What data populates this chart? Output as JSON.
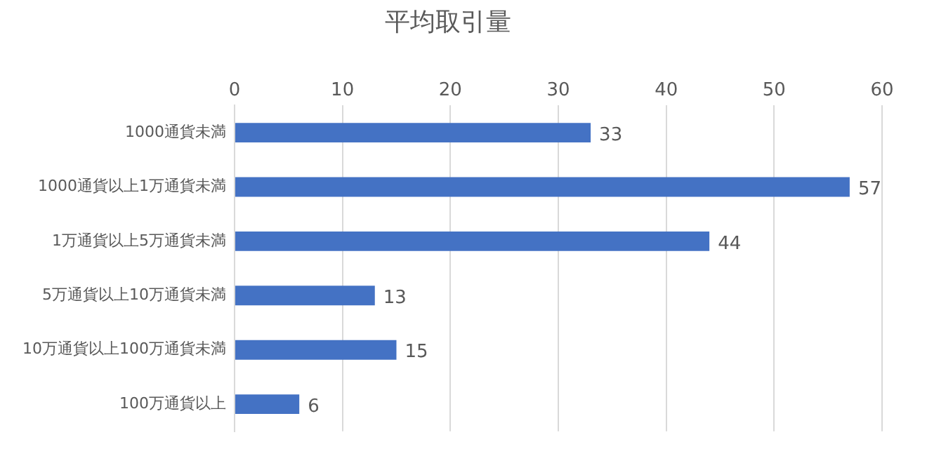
{
  "chart_data": {
    "type": "bar",
    "orientation": "horizontal",
    "title": "平均取引量",
    "categories": [
      "1000通貨未満",
      "1000通貨以上1万通貨未満",
      "1万通貨以上5万通貨未満",
      "5万通貨以上10万通貨未満",
      "10万通貨以上100万通貨未満",
      "100万通貨以上"
    ],
    "values": [
      33,
      57,
      44,
      13,
      15,
      6
    ],
    "color": "#4472c4",
    "xlim": [
      0,
      60
    ],
    "xticks": [
      0,
      10,
      20,
      30,
      40,
      50,
      60
    ],
    "grid": "x",
    "data_labels": true,
    "legend": false
  }
}
